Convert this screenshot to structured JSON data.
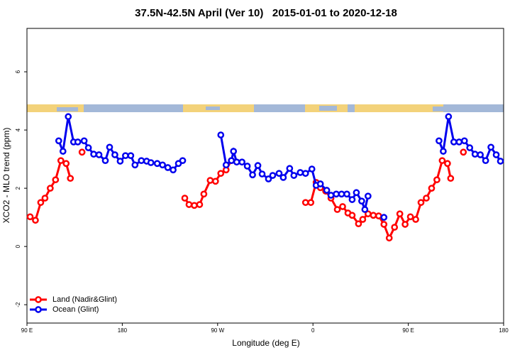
{
  "chart_data": {
    "type": "line",
    "title": "37.5N-42.5N April (Ver 10)   2015-01-01 to 2020-12-18",
    "xlabel": "Longitude (deg E)",
    "ylabel": "XCO2 - MLO trend (ppm)",
    "xlim": [
      90,
      540
    ],
    "xticks": [
      {
        "value": 90,
        "label": "90 E"
      },
      {
        "value": 180,
        "label": "180"
      },
      {
        "value": 270,
        "label": "90 W"
      },
      {
        "value": 360,
        "label": "0"
      },
      {
        "value": 450,
        "label": "90 E"
      },
      {
        "value": 540,
        "label": "180"
      }
    ],
    "ylim": [
      -2.63,
      7.49
    ],
    "yticks": [
      -2,
      0,
      2,
      4,
      6
    ],
    "legend": "bottom-left",
    "series": [
      {
        "name": "Land (Nadir&Glint)",
        "color": "#ff0000",
        "x": [
          93,
          98,
          103,
          107,
          112,
          117,
          122,
          127,
          131,
          null,
          142,
          null,
          239,
          243,
          248,
          253,
          257,
          263,
          268,
          273,
          278,
          283,
          null,
          353,
          358,
          363,
          367,
          372,
          377,
          383,
          388,
          393,
          397,
          403,
          407,
          412,
          417,
          422,
          427,
          432,
          437,
          442,
          447,
          452,
          457,
          462,
          467,
          472,
          477,
          482,
          487,
          490,
          null,
          502
        ],
        "values": [
          1.02,
          0.9,
          1.51,
          1.66,
          2.0,
          2.29,
          2.95,
          2.85,
          2.34,
          null,
          3.24,
          null,
          1.66,
          1.44,
          1.41,
          1.44,
          1.8,
          2.27,
          2.24,
          2.51,
          2.63,
          2.95,
          null,
          1.51,
          1.51,
          2.2,
          2.02,
          1.9,
          1.66,
          1.27,
          1.37,
          1.15,
          1.07,
          0.78,
          0.93,
          1.12,
          1.07,
          1.05,
          0.76,
          0.29,
          0.66,
          1.12,
          0.76,
          1.02,
          0.93,
          1.51,
          1.66,
          2.0,
          2.29,
          2.95,
          2.85,
          2.34,
          null,
          3.24
        ]
      },
      {
        "name": "Ocean (Glint)",
        "color": "#0000ee",
        "x": [
          120,
          124,
          129,
          134,
          138,
          144,
          148,
          153,
          158,
          164,
          168,
          173,
          178,
          183,
          188,
          192,
          198,
          203,
          207,
          213,
          218,
          223,
          228,
          233,
          237,
          null,
          273,
          278,
          283,
          285,
          288,
          293,
          298,
          303,
          308,
          312,
          318,
          322,
          328,
          332,
          338,
          342,
          348,
          353,
          359,
          363,
          367,
          373,
          377,
          382,
          387,
          392,
          397,
          401,
          406,
          409,
          412,
          null,
          427,
          null,
          479,
          483,
          488,
          493,
          498,
          503,
          508,
          513,
          518,
          523,
          528,
          533,
          537
        ],
        "values": [
          3.63,
          3.27,
          4.46,
          3.59,
          3.59,
          3.63,
          3.39,
          3.17,
          3.15,
          2.95,
          3.41,
          3.15,
          2.93,
          3.12,
          3.12,
          2.8,
          2.95,
          2.93,
          2.88,
          2.85,
          2.8,
          2.71,
          2.63,
          2.85,
          2.95,
          null,
          3.83,
          2.8,
          2.95,
          3.27,
          2.9,
          2.9,
          2.76,
          2.46,
          2.78,
          2.49,
          2.32,
          2.44,
          2.51,
          2.37,
          2.68,
          2.44,
          2.54,
          2.51,
          2.66,
          2.1,
          2.15,
          1.93,
          1.76,
          1.8,
          1.8,
          1.8,
          1.61,
          1.85,
          1.56,
          1.27,
          1.73,
          null,
          1.0,
          null,
          3.63,
          3.27,
          4.46,
          3.59,
          3.59,
          3.63,
          3.39,
          3.17,
          3.15,
          2.95,
          3.41,
          3.15,
          2.93
        ]
      }
    ]
  }
}
